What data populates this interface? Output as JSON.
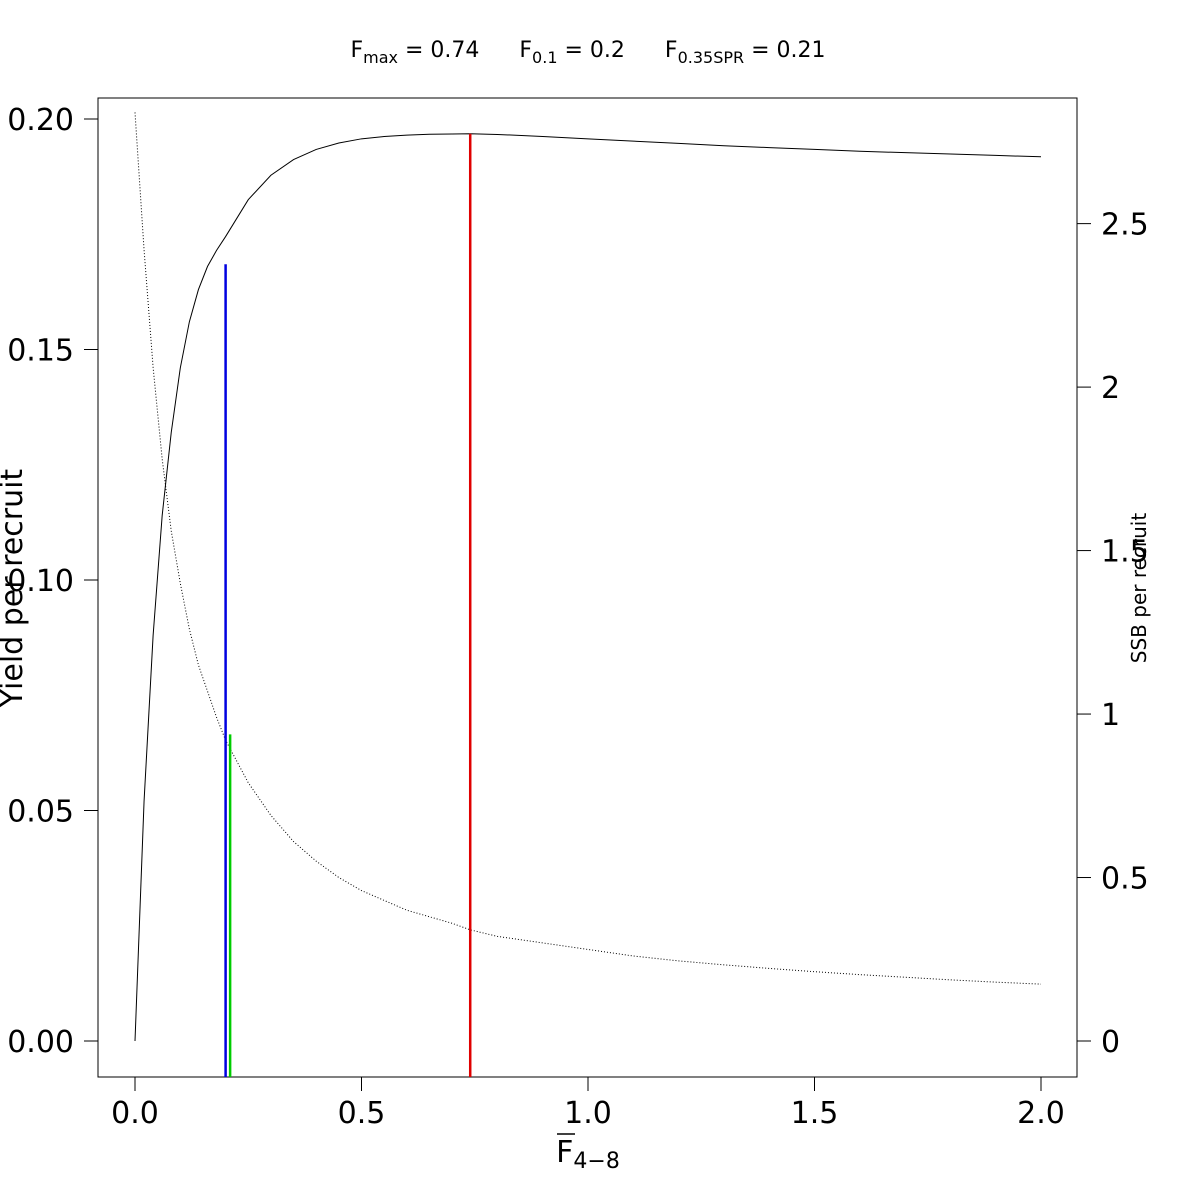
{
  "chart_data": {
    "type": "line",
    "title": {
      "parts": [
        {
          "main": "F",
          "sub": "max",
          "rest": " = 0.74"
        },
        {
          "main": "F",
          "sub": "0.1",
          "rest": " = 0.2"
        },
        {
          "main": "F",
          "sub": "0.35SPR",
          "rest": " = 0.21"
        }
      ]
    },
    "xlabel": {
      "main": "F",
      "sub": "4−8"
    },
    "ylabel": "Yield per recruit",
    "y2label": "SSB per recruit",
    "xlim": [
      0,
      2
    ],
    "ylim": [
      0,
      0.2
    ],
    "y2lim": [
      0,
      2.82
    ],
    "xticks": [
      {
        "value": 0.0,
        "label": "0.0"
      },
      {
        "value": 0.5,
        "label": "0.5"
      },
      {
        "value": 1.0,
        "label": "1.0"
      },
      {
        "value": 1.5,
        "label": "1.5"
      },
      {
        "value": 2.0,
        "label": "2.0"
      }
    ],
    "yticks": [
      {
        "value": 0.0,
        "label": "0.00"
      },
      {
        "value": 0.05,
        "label": "0.05"
      },
      {
        "value": 0.1,
        "label": "0.10"
      },
      {
        "value": 0.15,
        "label": "0.15"
      },
      {
        "value": 0.2,
        "label": "0.20"
      }
    ],
    "y2ticks": [
      {
        "value": 0,
        "label": "0"
      },
      {
        "value": 0.5,
        "label": "0.5"
      },
      {
        "value": 1,
        "label": "1"
      },
      {
        "value": 1.5,
        "label": "1.5"
      },
      {
        "value": 2,
        "label": "2"
      },
      {
        "value": 2.5,
        "label": "2.5"
      }
    ],
    "series": [
      {
        "axis": "left",
        "style": "solid",
        "color": "#000000",
        "x": [
          0,
          0.02,
          0.04,
          0.06,
          0.08,
          0.1,
          0.12,
          0.14,
          0.16,
          0.18,
          0.2,
          0.25,
          0.3,
          0.35,
          0.4,
          0.45,
          0.5,
          0.55,
          0.6,
          0.65,
          0.7,
          0.74,
          0.8,
          0.9,
          1.0,
          1.1,
          1.2,
          1.3,
          1.4,
          1.5,
          1.6,
          1.7,
          1.8,
          1.9,
          2.0
        ],
        "y": [
          0.0,
          0.052,
          0.088,
          0.114,
          0.132,
          0.146,
          0.156,
          0.163,
          0.168,
          0.1715,
          0.1745,
          0.1825,
          0.1878,
          0.1912,
          0.1934,
          0.1948,
          0.1957,
          0.1962,
          0.1965,
          0.1967,
          0.19675,
          0.1968,
          0.19665,
          0.1962,
          0.1957,
          0.1952,
          0.1947,
          0.1942,
          0.1938,
          0.1934,
          0.193,
          0.1927,
          0.1924,
          0.1921,
          0.1918
        ]
      },
      {
        "axis": "right",
        "style": "dotted",
        "color": "#000000",
        "x": [
          0,
          0.02,
          0.04,
          0.06,
          0.08,
          0.1,
          0.12,
          0.14,
          0.16,
          0.18,
          0.2,
          0.25,
          0.3,
          0.35,
          0.4,
          0.45,
          0.5,
          0.55,
          0.6,
          0.65,
          0.7,
          0.74,
          0.8,
          0.9,
          1.0,
          1.1,
          1.2,
          1.3,
          1.4,
          1.5,
          1.6,
          1.7,
          1.8,
          1.9,
          2.0
        ],
        "y": [
          2.84,
          2.42,
          2.06,
          1.78,
          1.56,
          1.4,
          1.26,
          1.15,
          1.07,
          0.99,
          0.92,
          0.79,
          0.69,
          0.61,
          0.55,
          0.5,
          0.46,
          0.43,
          0.4,
          0.38,
          0.36,
          0.34,
          0.32,
          0.3,
          0.28,
          0.26,
          0.245,
          0.233,
          0.222,
          0.212,
          0.203,
          0.195,
          0.187,
          0.18,
          0.174
        ]
      }
    ],
    "reference_lines": [
      {
        "name": "Fmax",
        "x": 0.74,
        "y_top": 0.1968,
        "color": "#e00000"
      },
      {
        "name": "F0.1",
        "x": 0.2,
        "y_top": 0.1685,
        "color": "#0000e0"
      },
      {
        "name": "F0.35SPR",
        "x": 0.21,
        "y_top": 0.0665,
        "color": "#00cc00"
      }
    ],
    "grid": false,
    "legend": "none"
  }
}
